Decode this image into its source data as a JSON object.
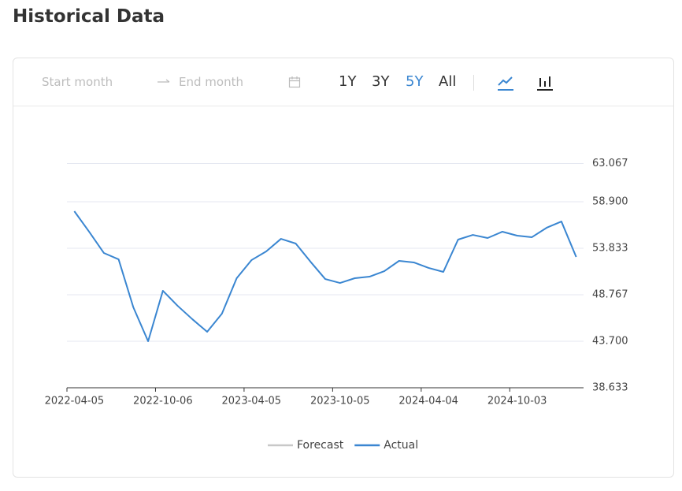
{
  "title": "Historical Data",
  "toolbar": {
    "start_placeholder": "Start month",
    "end_placeholder": "End month",
    "ranges": [
      "1Y",
      "3Y",
      "5Y",
      "All"
    ]
  },
  "chart_data": {
    "type": "line",
    "categories": [
      "2022-04-05",
      null,
      null,
      null,
      null,
      null,
      "2022-10-06",
      null,
      null,
      null,
      null,
      null,
      "2023-04-05",
      null,
      null,
      null,
      null,
      null,
      "2023-10-05",
      null,
      null,
      null,
      null,
      null,
      "2024-04-04",
      null,
      null,
      null,
      null,
      null,
      "2024-10-03",
      null,
      null,
      null,
      null
    ],
    "series": [
      {
        "name": "Forecast",
        "color": "#c8c8c8",
        "values": [
          null,
          null,
          null,
          null,
          null,
          null,
          null,
          null,
          null,
          null,
          null,
          null,
          null,
          null,
          null,
          null,
          null,
          null,
          null,
          null,
          null,
          null,
          null,
          null,
          null,
          null,
          null,
          null,
          null,
          null,
          null,
          null,
          null,
          null,
          null
        ]
      },
      {
        "name": "Actual",
        "color": "#3a86d1",
        "values": [
          57.87,
          55.64,
          53.32,
          52.63,
          47.39,
          43.7,
          49.2,
          47.56,
          46.1,
          44.73,
          46.71,
          50.57,
          52.54,
          53.49,
          54.86,
          54.35,
          52.37,
          50.48,
          50.05,
          50.57,
          50.74,
          51.34,
          52.46,
          52.29,
          51.69,
          51.26,
          54.78,
          55.29,
          54.95,
          55.64,
          55.21,
          55.04,
          56.07,
          56.75,
          52.89
        ]
      }
    ],
    "ylim": [
      38.633,
      63.067
    ],
    "yticks": [
      38.633,
      {
        "value": 43.7,
        "label": "43.700"
      },
      48.767,
      53.833,
      {
        "value": 58.9,
        "label": "58.900"
      },
      63.067
    ],
    "grid": true
  }
}
